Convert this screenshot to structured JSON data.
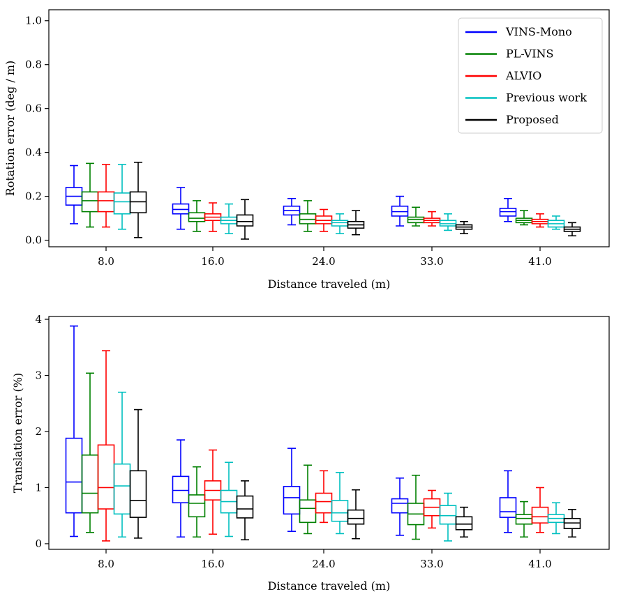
{
  "chart_data": [
    {
      "type": "box",
      "title": "",
      "xlabel": "Distance traveled (m)",
      "ylabel": "Rotation error (deg / m)",
      "ylim": [
        -0.03,
        1.05
      ],
      "yticks": [
        "0.0",
        "0.2",
        "0.4",
        "0.6",
        "0.8",
        "1.0"
      ],
      "categories": [
        "8.0",
        "16.0",
        "24.0",
        "33.0",
        "41.0"
      ],
      "legend_position": "top-right",
      "series": [
        {
          "name": "VINS-Mono",
          "color": "#0000ff",
          "boxes": [
            {
              "min": 0.075,
              "q1": 0.16,
              "median": 0.2,
              "q3": 0.24,
              "max": 0.34
            },
            {
              "min": 0.05,
              "q1": 0.12,
              "median": 0.14,
              "q3": 0.165,
              "max": 0.24
            },
            {
              "min": 0.07,
              "q1": 0.115,
              "median": 0.135,
              "q3": 0.155,
              "max": 0.19
            },
            {
              "min": 0.065,
              "q1": 0.11,
              "median": 0.13,
              "q3": 0.155,
              "max": 0.2
            },
            {
              "min": 0.085,
              "q1": 0.11,
              "median": 0.13,
              "q3": 0.145,
              "max": 0.19
            }
          ]
        },
        {
          "name": "PL-VINS",
          "color": "#008000",
          "boxes": [
            {
              "min": 0.06,
              "q1": 0.13,
              "median": 0.18,
              "q3": 0.22,
              "max": 0.35
            },
            {
              "min": 0.04,
              "q1": 0.085,
              "median": 0.1,
              "q3": 0.125,
              "max": 0.18
            },
            {
              "min": 0.04,
              "q1": 0.075,
              "median": 0.095,
              "q3": 0.12,
              "max": 0.18
            },
            {
              "min": 0.065,
              "q1": 0.08,
              "median": 0.095,
              "q3": 0.105,
              "max": 0.15
            },
            {
              "min": 0.07,
              "q1": 0.08,
              "median": 0.09,
              "q3": 0.1,
              "max": 0.135
            }
          ]
        },
        {
          "name": "ALVIO",
          "color": "#ff0000",
          "boxes": [
            {
              "min": 0.06,
              "q1": 0.13,
              "median": 0.18,
              "q3": 0.22,
              "max": 0.345
            },
            {
              "min": 0.04,
              "q1": 0.09,
              "median": 0.105,
              "q3": 0.12,
              "max": 0.17
            },
            {
              "min": 0.04,
              "q1": 0.075,
              "median": 0.09,
              "q3": 0.11,
              "max": 0.14
            },
            {
              "min": 0.065,
              "q1": 0.08,
              "median": 0.09,
              "q3": 0.1,
              "max": 0.13
            },
            {
              "min": 0.06,
              "q1": 0.075,
              "median": 0.085,
              "q3": 0.095,
              "max": 0.12
            }
          ]
        },
        {
          "name": "Previous work",
          "color": "#00c0c0",
          "boxes": [
            {
              "min": 0.05,
              "q1": 0.12,
              "median": 0.175,
              "q3": 0.215,
              "max": 0.345
            },
            {
              "min": 0.03,
              "q1": 0.075,
              "median": 0.09,
              "q3": 0.105,
              "max": 0.165
            },
            {
              "min": 0.03,
              "q1": 0.065,
              "median": 0.08,
              "q3": 0.09,
              "max": 0.12
            },
            {
              "min": 0.045,
              "q1": 0.065,
              "median": 0.075,
              "q3": 0.09,
              "max": 0.12
            },
            {
              "min": 0.05,
              "q1": 0.06,
              "median": 0.075,
              "q3": 0.09,
              "max": 0.11
            }
          ]
        },
        {
          "name": "Proposed",
          "color": "#000000",
          "boxes": [
            {
              "min": 0.012,
              "q1": 0.125,
              "median": 0.175,
              "q3": 0.22,
              "max": 0.355
            },
            {
              "min": 0.005,
              "q1": 0.065,
              "median": 0.085,
              "q3": 0.115,
              "max": 0.185
            },
            {
              "min": 0.025,
              "q1": 0.055,
              "median": 0.07,
              "q3": 0.085,
              "max": 0.135
            },
            {
              "min": 0.03,
              "q1": 0.05,
              "median": 0.06,
              "q3": 0.07,
              "max": 0.085
            },
            {
              "min": 0.02,
              "q1": 0.04,
              "median": 0.05,
              "q3": 0.06,
              "max": 0.08
            }
          ]
        }
      ]
    },
    {
      "type": "box",
      "title": "",
      "xlabel": "Distance traveled (m)",
      "ylabel": "Translation error (%)",
      "ylim": [
        -0.1,
        4.05
      ],
      "yticks": [
        "0",
        "1",
        "2",
        "3",
        "4"
      ],
      "categories": [
        "8.0",
        "16.0",
        "24.0",
        "33.0",
        "41.0"
      ],
      "series": [
        {
          "name": "VINS-Mono",
          "color": "#0000ff",
          "boxes": [
            {
              "min": 0.13,
              "q1": 0.55,
              "median": 1.1,
              "q3": 1.88,
              "max": 3.88
            },
            {
              "min": 0.12,
              "q1": 0.73,
              "median": 0.95,
              "q3": 1.2,
              "max": 1.85
            },
            {
              "min": 0.22,
              "q1": 0.53,
              "median": 0.82,
              "q3": 1.02,
              "max": 1.7
            },
            {
              "min": 0.15,
              "q1": 0.55,
              "median": 0.72,
              "q3": 0.8,
              "max": 1.17
            },
            {
              "min": 0.2,
              "q1": 0.47,
              "median": 0.57,
              "q3": 0.82,
              "max": 1.3
            }
          ]
        },
        {
          "name": "PL-VINS",
          "color": "#008000",
          "boxes": [
            {
              "min": 0.2,
              "q1": 0.55,
              "median": 0.9,
              "q3": 1.58,
              "max": 3.04
            },
            {
              "min": 0.12,
              "q1": 0.48,
              "median": 0.72,
              "q3": 0.87,
              "max": 1.37
            },
            {
              "min": 0.18,
              "q1": 0.38,
              "median": 0.63,
              "q3": 0.78,
              "max": 1.4
            },
            {
              "min": 0.08,
              "q1": 0.34,
              "median": 0.53,
              "q3": 0.72,
              "max": 1.22
            },
            {
              "min": 0.12,
              "q1": 0.35,
              "median": 0.45,
              "q3": 0.52,
              "max": 0.75
            }
          ]
        },
        {
          "name": "ALVIO",
          "color": "#ff0000",
          "boxes": [
            {
              "min": 0.05,
              "q1": 0.62,
              "median": 1.0,
              "q3": 1.76,
              "max": 3.44
            },
            {
              "min": 0.17,
              "q1": 0.78,
              "median": 0.95,
              "q3": 1.12,
              "max": 1.67
            },
            {
              "min": 0.38,
              "q1": 0.55,
              "median": 0.75,
              "q3": 0.9,
              "max": 1.3
            },
            {
              "min": 0.28,
              "q1": 0.5,
              "median": 0.65,
              "q3": 0.8,
              "max": 0.95
            },
            {
              "min": 0.2,
              "q1": 0.37,
              "median": 0.48,
              "q3": 0.65,
              "max": 1.0
            }
          ]
        },
        {
          "name": "Previous work",
          "color": "#00c0c0",
          "boxes": [
            {
              "min": 0.12,
              "q1": 0.53,
              "median": 1.03,
              "q3": 1.42,
              "max": 2.7
            },
            {
              "min": 0.13,
              "q1": 0.55,
              "median": 0.75,
              "q3": 0.95,
              "max": 1.45
            },
            {
              "min": 0.18,
              "q1": 0.4,
              "median": 0.55,
              "q3": 0.77,
              "max": 1.27
            },
            {
              "min": 0.05,
              "q1": 0.35,
              "median": 0.5,
              "q3": 0.68,
              "max": 0.9
            },
            {
              "min": 0.18,
              "q1": 0.38,
              "median": 0.45,
              "q3": 0.52,
              "max": 0.73
            }
          ]
        },
        {
          "name": "Proposed",
          "color": "#000000",
          "boxes": [
            {
              "min": 0.1,
              "q1": 0.47,
              "median": 0.77,
              "q3": 1.3,
              "max": 2.39
            },
            {
              "min": 0.07,
              "q1": 0.46,
              "median": 0.62,
              "q3": 0.85,
              "max": 1.12
            },
            {
              "min": 0.09,
              "q1": 0.35,
              "median": 0.45,
              "q3": 0.6,
              "max": 0.96
            },
            {
              "min": 0.12,
              "q1": 0.25,
              "median": 0.35,
              "q3": 0.48,
              "max": 0.65
            },
            {
              "min": 0.12,
              "q1": 0.27,
              "median": 0.37,
              "q3": 0.45,
              "max": 0.61
            }
          ]
        }
      ]
    }
  ]
}
